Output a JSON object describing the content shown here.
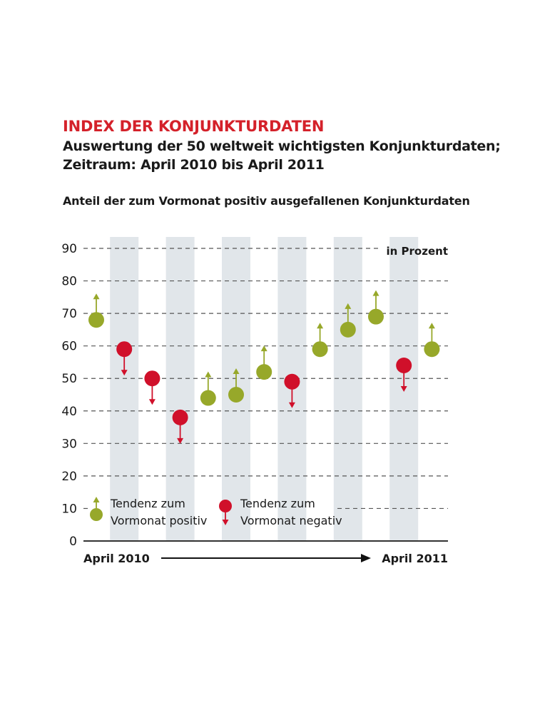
{
  "colors": {
    "title_red": "#d4212a",
    "positive": "#97a82a",
    "negative": "#d0102a",
    "band": "#e1e6ea",
    "grid": "#555555",
    "text": "#1a1a1a"
  },
  "header": {
    "title": "INDEX DER KONJUNKTURDATEN",
    "subtitle_line1": "Auswertung der 50 weltweit wichtigsten Konjunkturdaten;",
    "subtitle_line2": "Zeitraum: April 2010 bis April 2011",
    "caption": "Anteil der zum Vormonat positiv ausgefallenen Konjunkturdaten"
  },
  "chart_data": {
    "type": "scatter",
    "unit_label": "in Prozent",
    "ylim": [
      0,
      90
    ],
    "yticks": [
      0,
      10,
      20,
      30,
      40,
      50,
      60,
      70,
      80,
      90
    ],
    "grid": "dashed horizontal",
    "x_start_label": "April 2010",
    "x_end_label": "April 2011",
    "points": [
      {
        "value": 68,
        "trend": "positive"
      },
      {
        "value": 59,
        "trend": "negative"
      },
      {
        "value": 50,
        "trend": "negative"
      },
      {
        "value": 38,
        "trend": "negative"
      },
      {
        "value": 44,
        "trend": "positive"
      },
      {
        "value": 45,
        "trend": "positive"
      },
      {
        "value": 52,
        "trend": "positive"
      },
      {
        "value": 49,
        "trend": "negative"
      },
      {
        "value": 59,
        "trend": "positive"
      },
      {
        "value": 65,
        "trend": "positive"
      },
      {
        "value": 69,
        "trend": "positive"
      },
      {
        "value": 54,
        "trend": "negative"
      },
      {
        "value": 59,
        "trend": "positive"
      }
    ],
    "legend": {
      "positive_line1": "Tendenz zum",
      "positive_line2": "Vormonat positiv",
      "negative_line1": "Tendenz zum",
      "negative_line2": "Vormonat negativ"
    }
  }
}
